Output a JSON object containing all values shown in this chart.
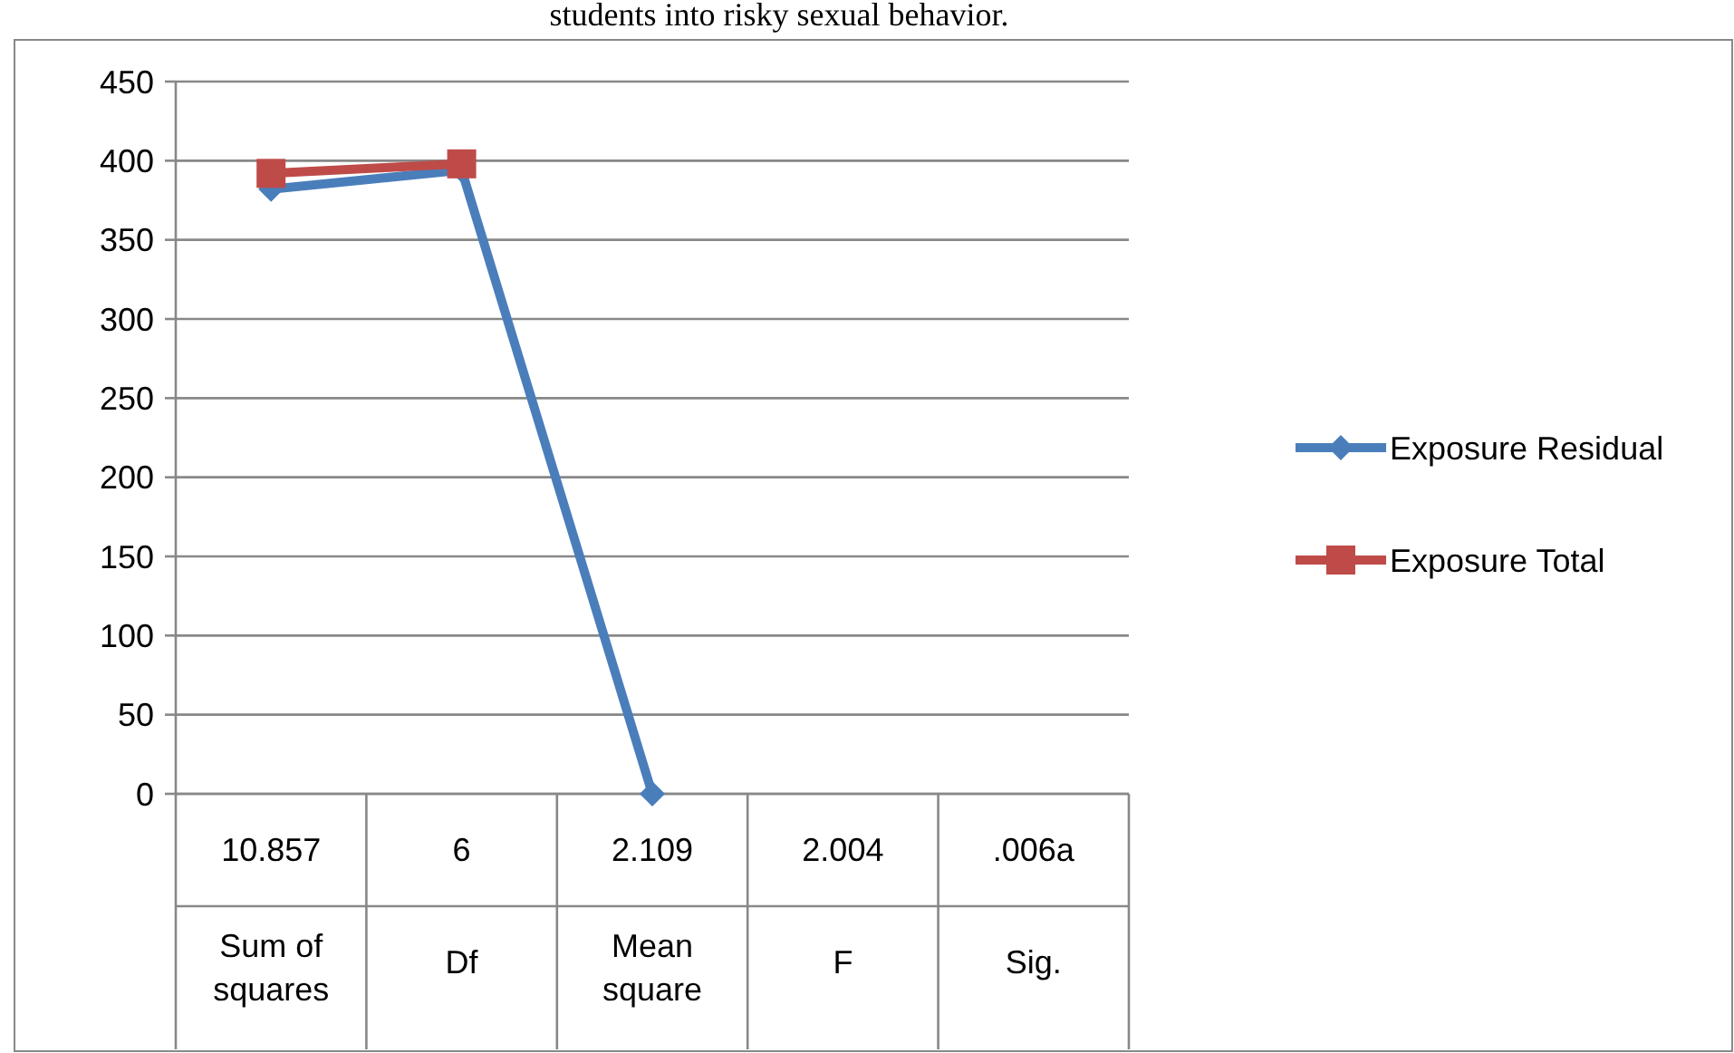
{
  "chart_data": {
    "type": "line",
    "title": "students into risky sexual behavior.",
    "categories": [
      "10.857\nSum of squares",
      "6\nDf",
      "2.109\nMean square",
      "2.004\nF",
      ".006a\nSig."
    ],
    "series": [
      {
        "name": "Exposure Residual",
        "color": "#4a7ebb",
        "marker": "diamond",
        "values": [
          382,
          394,
          0,
          null,
          null
        ]
      },
      {
        "name": "Exposure Total",
        "color": "#be4b48",
        "marker": "square",
        "values": [
          392,
          398,
          null,
          null,
          null
        ]
      }
    ],
    "ylim": [
      0,
      450
    ],
    "yticks": [
      0,
      50,
      100,
      150,
      200,
      250,
      300,
      350,
      400,
      450
    ],
    "grid": "y",
    "legend": "right"
  }
}
